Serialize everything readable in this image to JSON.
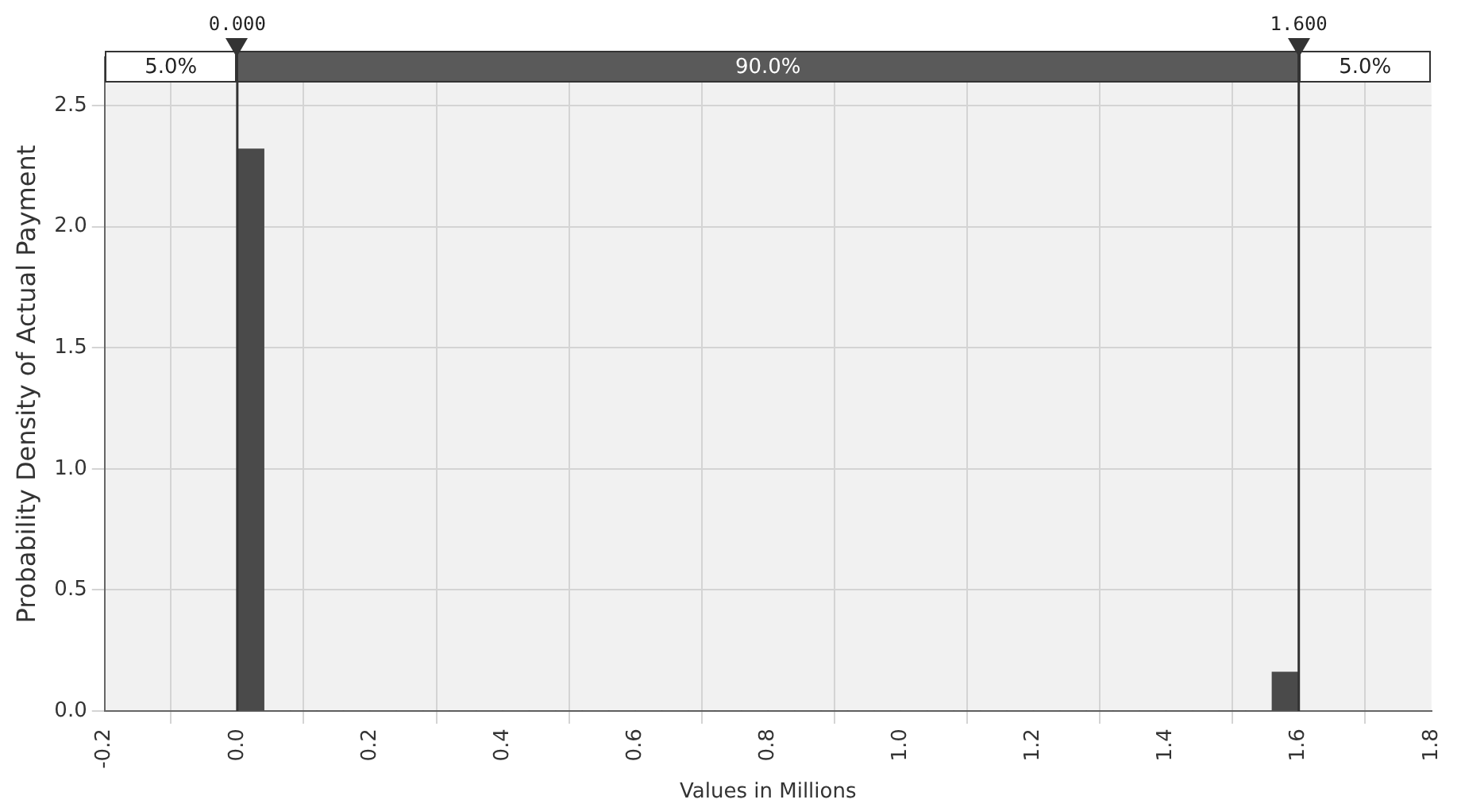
{
  "chart_data": {
    "type": "histogram",
    "xlabel": "Values in Millions",
    "ylabel": "Probability Density of Actual Payment",
    "bins": [
      0,
      0.04,
      0.08,
      0.12,
      0.16,
      0.2,
      0.24,
      0.28,
      0.32,
      0.36,
      0.4,
      0.44,
      0.48,
      0.52,
      0.56,
      0.6,
      0.64,
      0.68,
      0.72,
      0.76,
      0.8,
      0.84,
      0.88,
      0.92,
      0.96,
      1,
      1.04,
      1.08,
      1.12,
      1.16,
      1.2,
      1.24,
      1.28,
      1.32,
      1.36,
      1.4,
      1.44,
      1.48,
      1.52,
      1.56,
      1.6
    ],
    "values": [
      2.32,
      0,
      0,
      0,
      0,
      0,
      0,
      0,
      0,
      0,
      0,
      0,
      0,
      0,
      0,
      0,
      0,
      0,
      0,
      0,
      0,
      0,
      0,
      0,
      0,
      0,
      0,
      0,
      0,
      0,
      0,
      0,
      0,
      0,
      0,
      0,
      0,
      0,
      0,
      0.16
    ],
    "color": "#4a4a4a",
    "xlim": [
      -0.2,
      1.8
    ],
    "xticks": [
      {
        "value": -0.2,
        "label": "-0.2"
      },
      {
        "value": 0,
        "label": "0.0"
      },
      {
        "value": 0.2,
        "label": "0.2"
      },
      {
        "value": 0.4,
        "label": "0.4"
      },
      {
        "value": 0.6,
        "label": "0.6"
      },
      {
        "value": 0.8,
        "label": "0.8"
      },
      {
        "value": 1,
        "label": "1.0"
      },
      {
        "value": 1.2,
        "label": "1.2"
      },
      {
        "value": 1.4,
        "label": "1.4"
      },
      {
        "value": 1.6,
        "label": "1.6"
      },
      {
        "value": 1.8,
        "label": "1.8"
      }
    ],
    "ylim": [
      0,
      2.7
    ],
    "yticks": [
      {
        "value": 0,
        "label": "0.0"
      },
      {
        "value": 0.5,
        "label": "0.5"
      },
      {
        "value": 1,
        "label": "1.0"
      },
      {
        "value": 1.5,
        "label": "1.5"
      },
      {
        "value": 2,
        "label": "2.0"
      },
      {
        "value": 2.5,
        "label": "2.5"
      }
    ],
    "grid": true,
    "ref_lines": [
      {
        "axis": "x",
        "value": 0,
        "label": "0.000",
        "color": "#333333"
      },
      {
        "axis": "x",
        "value": 1.6,
        "label": "1.600",
        "color": "#333333"
      }
    ],
    "annotations": [
      "5.0%",
      "90.0%",
      "5.0%"
    ]
  }
}
